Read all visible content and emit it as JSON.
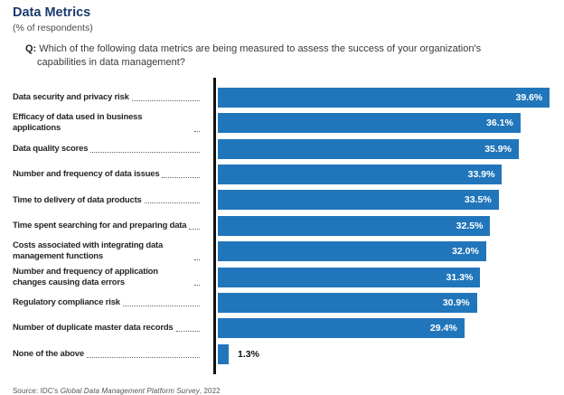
{
  "header": {
    "title": "Data Metrics",
    "subtitle": "(% of respondents)",
    "question_prefix": "Q:",
    "question": "Which of the following data metrics are being measured to assess the success of your organization's capabilities in data management?"
  },
  "chart_data": {
    "type": "bar",
    "orientation": "horizontal",
    "title": "Data Metrics",
    "subtitle": "(% of respondents)",
    "unit": "%",
    "value_axis_range": [
      0,
      40
    ],
    "bar_color": "#2176bb",
    "grid": false,
    "legend": false,
    "categories": [
      "Data security and privacy risk",
      "Efficacy of data used in business applications",
      "Data quality scores",
      "Number and frequency of data issues",
      "Time to delivery of data products",
      "Time spent searching for and preparing data",
      "Costs associated with integrating data management functions",
      "Number and frequency of application changes causing data errors",
      "Regulatory compliance risk",
      "Number of duplicate master data records",
      "None of the above"
    ],
    "values": [
      39.6,
      36.1,
      35.9,
      33.9,
      33.5,
      32.5,
      32.0,
      31.3,
      30.9,
      29.4,
      1.3
    ],
    "value_labels": [
      "39.6%",
      "36.1%",
      "35.9%",
      "33.9%",
      "33.5%",
      "32.5%",
      "32.0%",
      "31.3%",
      "30.9%",
      "29.4%",
      "1.3%"
    ]
  },
  "footer": {
    "source_prefix": "Source: IDC's ",
    "source_italic": "Global Data Management Platform Survey",
    "source_suffix": ", 2022"
  }
}
